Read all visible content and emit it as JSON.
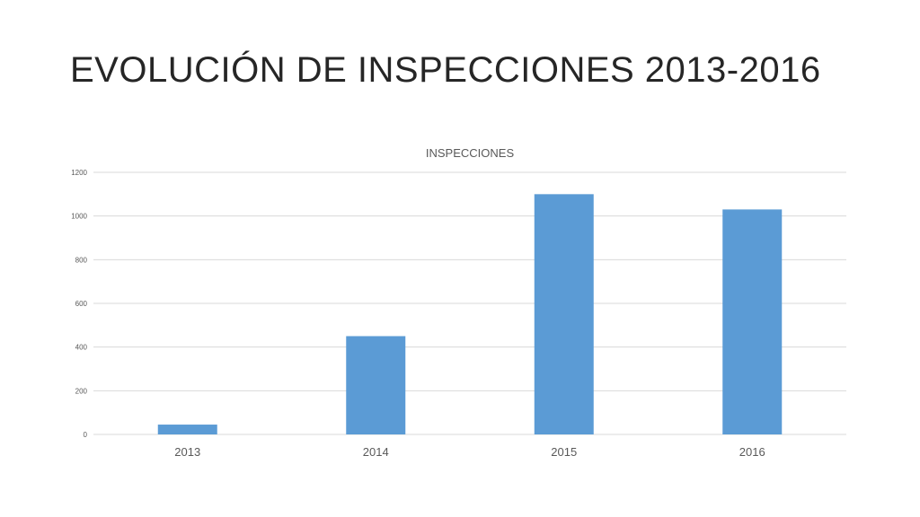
{
  "slide": {
    "title": "EVOLUCIÓN DE INSPECCIONES 2013-2016"
  },
  "chart_data": {
    "type": "bar",
    "title": "INSPECCIONES",
    "categories": [
      "2013",
      "2014",
      "2015",
      "2016"
    ],
    "values": [
      45,
      450,
      1100,
      1030
    ],
    "ylim": [
      0,
      1200
    ],
    "yticks": [
      0,
      200,
      400,
      600,
      800,
      1000,
      1200
    ],
    "xlabel": "",
    "ylabel": "",
    "grid": true,
    "legend": "none",
    "bar_color": "#5b9bd5"
  }
}
